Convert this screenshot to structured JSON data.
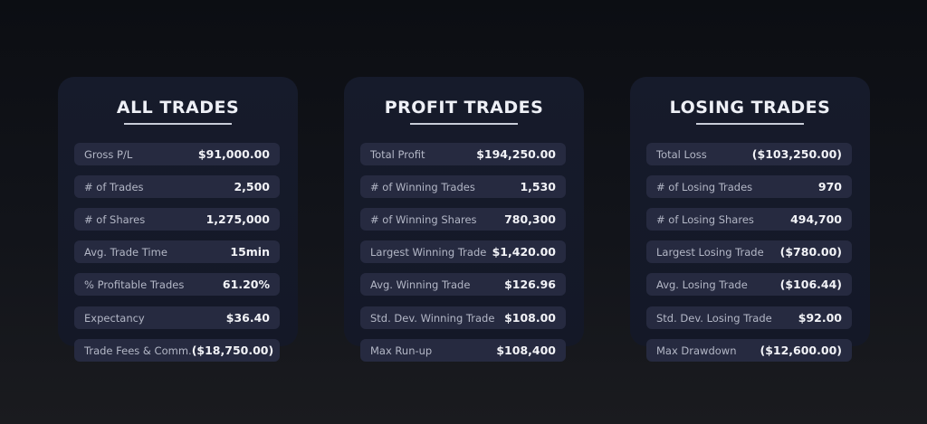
{
  "panels": [
    {
      "title": "ALL TRADES",
      "rows": [
        {
          "label": "Gross P/L",
          "value": "$91,000.00"
        },
        {
          "label": "# of Trades",
          "value": "2,500"
        },
        {
          "label": "# of Shares",
          "value": "1,275,000"
        },
        {
          "label": "Avg. Trade Time",
          "value": "15min"
        },
        {
          "label": "% Profitable Trades",
          "value": "61.20%"
        },
        {
          "label": "Expectancy",
          "value": "$36.40"
        },
        {
          "label": "Trade Fees & Comm.",
          "value": "($18,750.00)"
        }
      ]
    },
    {
      "title": "PROFIT TRADES",
      "rows": [
        {
          "label": "Total Profit",
          "value": "$194,250.00"
        },
        {
          "label": "# of Winning Trades",
          "value": "1,530"
        },
        {
          "label": "# of Winning Shares",
          "value": "780,300"
        },
        {
          "label": "Largest Winning Trade",
          "value": "$1,420.00"
        },
        {
          "label": "Avg. Winning Trade",
          "value": "$126.96"
        },
        {
          "label": "Std. Dev. Winning Trade",
          "value": "$108.00"
        },
        {
          "label": "Max Run-up",
          "value": "$108,400"
        }
      ]
    },
    {
      "title": "LOSING TRADES",
      "rows": [
        {
          "label": "Total Loss",
          "value": "($103,250.00)"
        },
        {
          "label": "# of Losing Trades",
          "value": "970"
        },
        {
          "label": "# of Losing Shares",
          "value": "494,700"
        },
        {
          "label": "Largest Losing Trade",
          "value": "($780.00)"
        },
        {
          "label": "Avg. Losing Trade",
          "value": "($106.44)"
        },
        {
          "label": "Std. Dev. Losing Trade",
          "value": "$92.00"
        },
        {
          "label": "Max Drawdown",
          "value": "($12,600.00)"
        }
      ]
    }
  ]
}
